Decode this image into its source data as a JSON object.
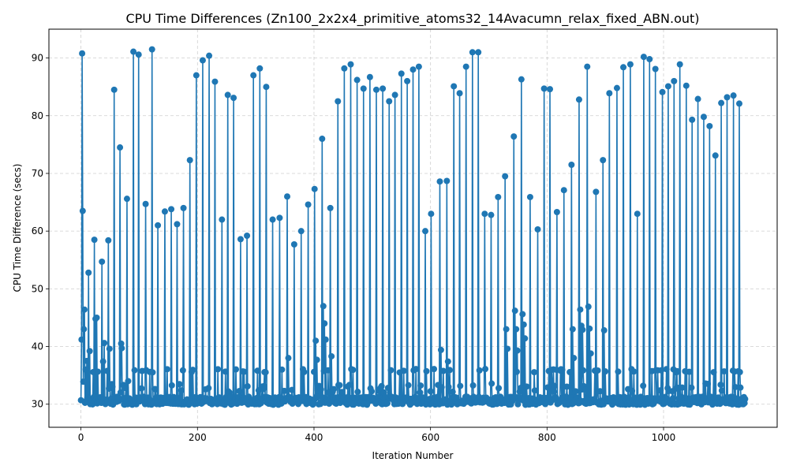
{
  "chart_data": {
    "type": "line",
    "title": "CPU Time Differences (Zn100_2x2x4_primitive_atoms32_14Avacumn_relax_fixed_ABN.out)",
    "xlabel": "Iteration Number",
    "ylabel": "CPU Time Difference (secs)",
    "xlim": [
      -55,
      1195
    ],
    "ylim": [
      26,
      95
    ],
    "xticks": [
      0,
      200,
      400,
      600,
      800,
      1000
    ],
    "yticks": [
      30,
      40,
      50,
      60,
      70,
      80,
      90
    ],
    "grid": true,
    "marker": "circle",
    "color": "#1f77b4",
    "baseline": 30.6,
    "spikes": [
      [
        1,
        41.2
      ],
      [
        2,
        90.8
      ],
      [
        3,
        63.5
      ],
      [
        4,
        33.9
      ],
      [
        5,
        43.0
      ],
      [
        6,
        46.4
      ],
      [
        8,
        36.0
      ],
      [
        10,
        37.5
      ],
      [
        13,
        52.8
      ],
      [
        15,
        39.2
      ],
      [
        23,
        58.5
      ],
      [
        25,
        44.8
      ],
      [
        27,
        45.0
      ],
      [
        36,
        54.7
      ],
      [
        38,
        37.4
      ],
      [
        40,
        40.6
      ],
      [
        47,
        58.4
      ],
      [
        49,
        39.6
      ],
      [
        57,
        84.5
      ],
      [
        67,
        74.5
      ],
      [
        69,
        40.5
      ],
      [
        70,
        39.7
      ],
      [
        79,
        65.6
      ],
      [
        81,
        34.0
      ],
      [
        90,
        91.1
      ],
      [
        99,
        90.6
      ],
      [
        111,
        64.7
      ],
      [
        122,
        91.5
      ],
      [
        132,
        61.0
      ],
      [
        144,
        63.4
      ],
      [
        155,
        63.8
      ],
      [
        165,
        61.2
      ],
      [
        176,
        64.0
      ],
      [
        187,
        72.3
      ],
      [
        198,
        87.0
      ],
      [
        209,
        89.6
      ],
      [
        220,
        90.4
      ],
      [
        230,
        85.9
      ],
      [
        242,
        62.0
      ],
      [
        252,
        83.6
      ],
      [
        262,
        83.1
      ],
      [
        274,
        58.6
      ],
      [
        285,
        59.2
      ],
      [
        296,
        87.0
      ],
      [
        307,
        88.2
      ],
      [
        318,
        85.0
      ],
      [
        329,
        62.0
      ],
      [
        341,
        62.3
      ],
      [
        354,
        66.0
      ],
      [
        356,
        38.0
      ],
      [
        366,
        57.7
      ],
      [
        378,
        60.0
      ],
      [
        390,
        64.6
      ],
      [
        401,
        67.3
      ],
      [
        403,
        41.0
      ],
      [
        405,
        37.7
      ],
      [
        414,
        76.0
      ],
      [
        416,
        47.0
      ],
      [
        418,
        44.0
      ],
      [
        420,
        41.2
      ],
      [
        428,
        64.0
      ],
      [
        430,
        38.3
      ],
      [
        441,
        82.5
      ],
      [
        452,
        88.2
      ],
      [
        463,
        88.9
      ],
      [
        474,
        86.2
      ],
      [
        485,
        84.7
      ],
      [
        496,
        86.7
      ],
      [
        507,
        84.5
      ],
      [
        518,
        84.7
      ],
      [
        529,
        82.5
      ],
      [
        539,
        83.6
      ],
      [
        550,
        87.3
      ],
      [
        560,
        86.0
      ],
      [
        570,
        88.0
      ],
      [
        580,
        88.5
      ],
      [
        591,
        60.0
      ],
      [
        601,
        63.0
      ],
      [
        616,
        68.6
      ],
      [
        618,
        39.4
      ],
      [
        628,
        68.7
      ],
      [
        630,
        37.4
      ],
      [
        640,
        85.1
      ],
      [
        650,
        83.9
      ],
      [
        661,
        88.5
      ],
      [
        672,
        91.0
      ],
      [
        682,
        91.0
      ],
      [
        693,
        63.0
      ],
      [
        704,
        62.8
      ],
      [
        716,
        65.9
      ],
      [
        728,
        69.5
      ],
      [
        730,
        43.0
      ],
      [
        732,
        39.6
      ],
      [
        743,
        76.4
      ],
      [
        745,
        46.2
      ],
      [
        747,
        43.0
      ],
      [
        749,
        39.3
      ],
      [
        756,
        86.3
      ],
      [
        758,
        45.6
      ],
      [
        760,
        43.8
      ],
      [
        762,
        41.4
      ],
      [
        771,
        65.9
      ],
      [
        784,
        60.3
      ],
      [
        795,
        84.7
      ],
      [
        805,
        84.6
      ],
      [
        817,
        63.3
      ],
      [
        829,
        67.1
      ],
      [
        842,
        71.5
      ],
      [
        844,
        43.0
      ],
      [
        846,
        38.0
      ],
      [
        855,
        82.8
      ],
      [
        857,
        46.4
      ],
      [
        859,
        43.6
      ],
      [
        861,
        42.9
      ],
      [
        869,
        88.5
      ],
      [
        871,
        46.9
      ],
      [
        873,
        43.1
      ],
      [
        875,
        38.8
      ],
      [
        884,
        66.8
      ],
      [
        896,
        72.3
      ],
      [
        898,
        42.8
      ],
      [
        907,
        83.9
      ],
      [
        920,
        84.8
      ],
      [
        931,
        88.4
      ],
      [
        943,
        88.9
      ],
      [
        955,
        63.0
      ],
      [
        966,
        90.2
      ],
      [
        976,
        89.8
      ],
      [
        986,
        88.1
      ],
      [
        998,
        84.1
      ],
      [
        1008,
        85.1
      ],
      [
        1018,
        86.0
      ],
      [
        1028,
        88.9
      ],
      [
        1039,
        85.2
      ],
      [
        1049,
        79.3
      ],
      [
        1059,
        82.9
      ],
      [
        1069,
        79.8
      ],
      [
        1079,
        78.2
      ],
      [
        1089,
        73.1
      ],
      [
        1099,
        82.2
      ],
      [
        1109,
        83.2
      ],
      [
        1120,
        83.5
      ],
      [
        1130,
        82.1
      ],
      [
        1140,
        30.9
      ]
    ]
  }
}
